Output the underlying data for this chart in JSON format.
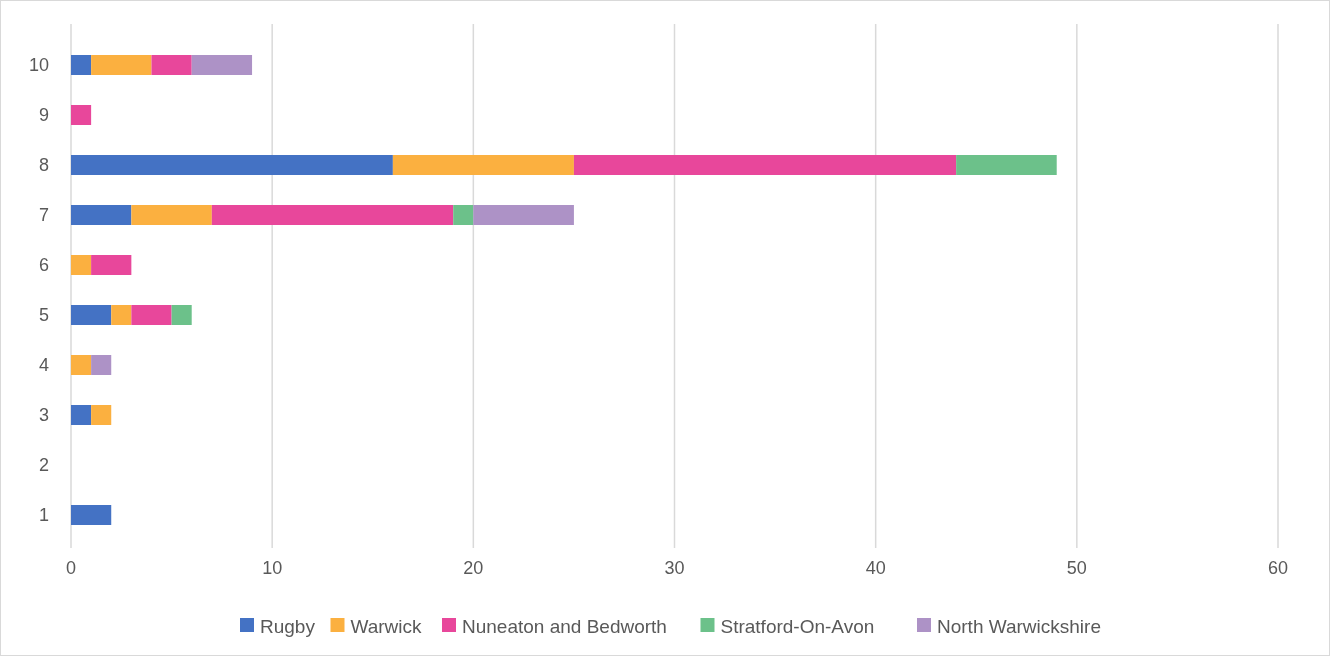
{
  "chart_data": {
    "type": "bar",
    "orientation": "horizontal",
    "stacked": true,
    "categories": [
      "10",
      "9",
      "8",
      "7",
      "6",
      "5",
      "4",
      "3",
      "2",
      "1"
    ],
    "series": [
      {
        "name": "Rugby",
        "color": "#4472c4",
        "values": [
          1,
          0,
          16,
          3,
          0,
          2,
          0,
          1,
          0,
          2
        ]
      },
      {
        "name": "Warwick",
        "color": "#fbb040",
        "values": [
          3,
          0,
          9,
          4,
          1,
          1,
          1,
          1,
          0,
          0
        ]
      },
      {
        "name": "Nuneaton and Bedworth",
        "color": "#e8479b",
        "values": [
          2,
          1,
          19,
          12,
          2,
          2,
          0,
          0,
          0,
          0
        ]
      },
      {
        "name": "Stratford-On-Avon",
        "color": "#6cc18a",
        "values": [
          0,
          0,
          5,
          1,
          0,
          1,
          0,
          0,
          0,
          0
        ]
      },
      {
        "name": "North Warwickshire",
        "color": "#ad92c6",
        "values": [
          3,
          0,
          0,
          5,
          0,
          0,
          1,
          0,
          0,
          0
        ]
      }
    ],
    "xlim": [
      0,
      60
    ],
    "xticks": [
      0,
      10,
      20,
      30,
      40,
      50,
      60
    ],
    "grid": "x",
    "legend": "bottom"
  }
}
